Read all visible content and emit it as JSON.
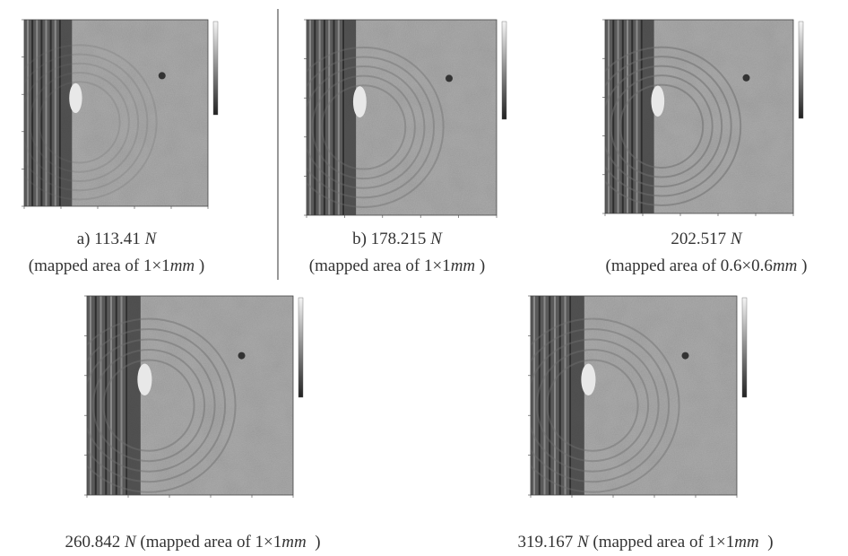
{
  "panels": [
    {
      "force": "a) 113.41",
      "unit": "N",
      "area": "(mapped area of 1×1",
      "area_unit": "mm",
      "close": ")"
    },
    {
      "force": "b) 178.215",
      "unit": "N",
      "area": "(mapped area of 1×1",
      "area_unit": "mm",
      "close": ")"
    },
    {
      "force": "202.517",
      "unit": "N",
      "area": "(mapped area of 0.6×0.6",
      "area_unit": "mm",
      "close": ")"
    },
    {
      "force": "260.842",
      "unit": "N",
      "area": "(mapped area of 1×1",
      "area_unit": "mm",
      "close": ")"
    },
    {
      "force": "319.167",
      "unit": "N",
      "area": "(mapped area of 1×1",
      "area_unit": "mm",
      "close": ")"
    }
  ]
}
